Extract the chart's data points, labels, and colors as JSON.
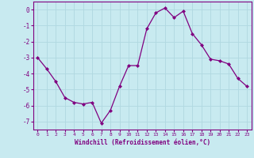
{
  "x": [
    0,
    1,
    2,
    3,
    4,
    5,
    6,
    7,
    8,
    9,
    10,
    11,
    12,
    13,
    14,
    15,
    16,
    17,
    18,
    19,
    20,
    21,
    22,
    23
  ],
  "y": [
    -3.0,
    -3.7,
    -4.5,
    -5.5,
    -5.8,
    -5.9,
    -5.8,
    -7.1,
    -6.3,
    -4.8,
    -3.5,
    -3.5,
    -1.2,
    -0.2,
    0.1,
    -0.5,
    -0.1,
    -1.5,
    -2.2,
    -3.1,
    -3.2,
    -3.4,
    -4.3,
    -4.8
  ],
  "line_color": "#800080",
  "marker": "D",
  "marker_size": 2,
  "bg_color": "#c8eaf0",
  "grid_color": "#b0d8e0",
  "xlabel": "Windchill (Refroidissement éolien,°C)",
  "xlabel_color": "#800080",
  "tick_color": "#800080",
  "spine_color": "#800080",
  "ylim": [
    -7.5,
    0.5
  ],
  "xlim": [
    -0.5,
    23.5
  ],
  "yticks": [
    0,
    -1,
    -2,
    -3,
    -4,
    -5,
    -6,
    -7
  ],
  "xticks": [
    0,
    1,
    2,
    3,
    4,
    5,
    6,
    7,
    8,
    9,
    10,
    11,
    12,
    13,
    14,
    15,
    16,
    17,
    18,
    19,
    20,
    21,
    22,
    23
  ]
}
